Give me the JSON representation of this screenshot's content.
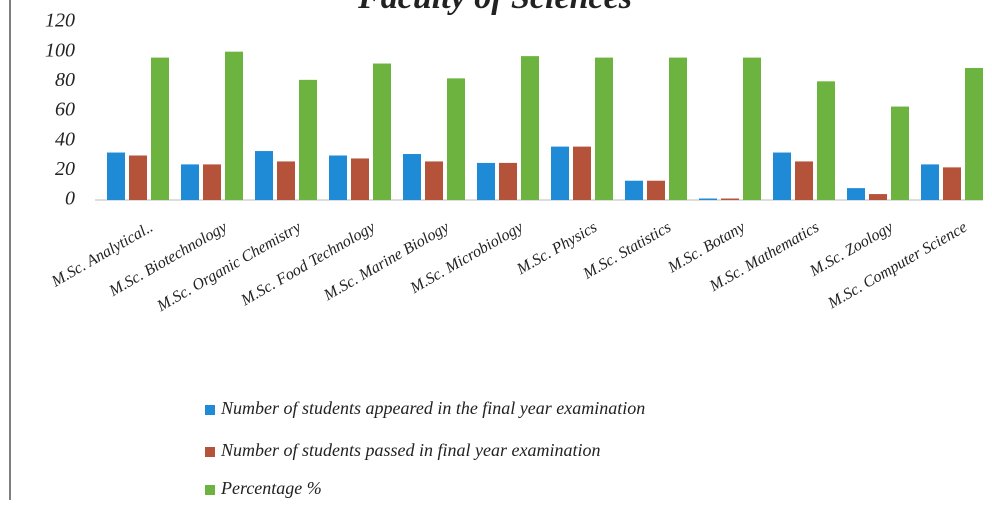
{
  "chart_data": {
    "type": "bar",
    "title": "Faculty of Sciences",
    "categories": [
      "M.Sc. Analytical..",
      "M.Sc. Biotechnology",
      "M.Sc. Organic Chemistry",
      "M.Sc. Food Technology",
      "M.Sc. Marine Biology",
      "M.Sc. Microbiology",
      "M.Sc. Physics",
      "M.Sc. Statistics",
      "M.Sc. Botany",
      "M.Sc. Mathematics",
      "M.Sc. Zoology",
      "M.Sc. Computer Science"
    ],
    "series": [
      {
        "name": "Number of students appeared in the final year examination",
        "color": "#1f8ad6",
        "values": [
          32,
          24,
          33,
          30,
          31,
          25,
          36,
          13,
          1,
          32,
          8,
          24
        ]
      },
      {
        "name": "Number of students passed in final year examination",
        "color": "#b5533a",
        "values": [
          30,
          24,
          26,
          28,
          26,
          25,
          36,
          13,
          1,
          26,
          4,
          22
        ]
      },
      {
        "name": "Percentage %",
        "color": "#6db33f",
        "values": [
          96,
          100,
          81,
          92,
          82,
          97,
          96,
          96,
          96,
          80,
          63,
          89
        ]
      }
    ],
    "ylim": [
      0,
      120
    ],
    "yticks": [
      0,
      20,
      40,
      60,
      80,
      100,
      120
    ],
    "grid": false,
    "legend": "bottom"
  }
}
